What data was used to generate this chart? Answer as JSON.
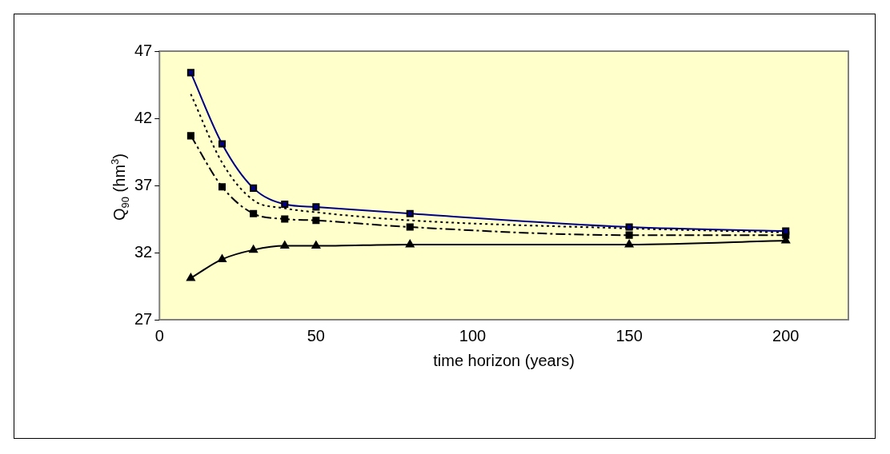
{
  "chart_data": {
    "type": "line",
    "xlabel": "time horizon (years)",
    "ylabel": "Q$_{90}$ (hm$^{3}$)",
    "x": [
      10,
      20,
      30,
      40,
      50,
      80,
      150,
      200
    ],
    "series": [
      {
        "color": "#000080",
        "marker": "square",
        "line_style": "solid",
        "values": [
          45.4,
          40.1,
          36.8,
          35.6,
          35.4,
          34.9,
          33.9,
          33.6
        ]
      },
      {
        "color": "#000000",
        "marker": "none",
        "line_style": "dotted",
        "values": [
          43.8,
          38.7,
          35.9,
          35.3,
          35.0,
          34.4,
          33.8,
          33.5
        ]
      },
      {
        "color": "#000000",
        "marker": "square",
        "line_style": "dashed",
        "values": [
          40.7,
          36.9,
          34.9,
          34.5,
          34.4,
          33.9,
          33.3,
          33.3
        ]
      },
      {
        "color": "#000000",
        "marker": "triangle",
        "line_style": "solid",
        "values": [
          30.1,
          31.5,
          32.2,
          32.5,
          32.5,
          32.6,
          32.6,
          32.9
        ]
      }
    ],
    "xlim": [
      0,
      220
    ],
    "xticks": [
      0,
      50,
      100,
      150,
      200
    ],
    "ylim": [
      27,
      47
    ],
    "yticks": [
      27,
      32,
      37,
      42,
      47
    ],
    "grid": false,
    "legend": false
  }
}
